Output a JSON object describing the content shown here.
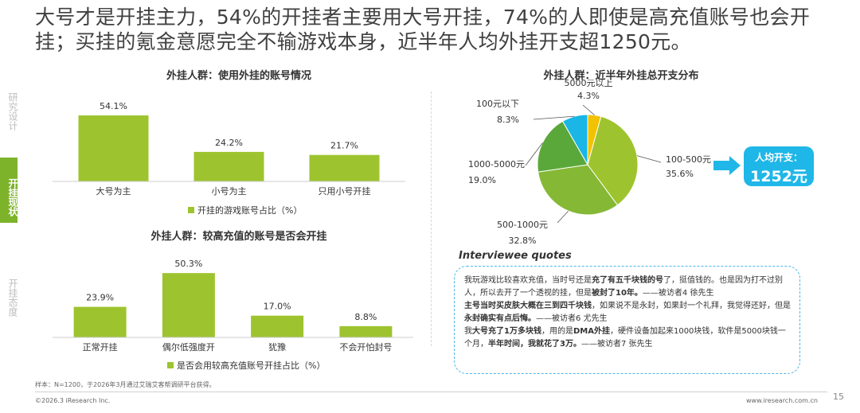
{
  "headline": "大号才是开挂主力，54%的开挂者主要用大号开挂，74%的人即使是高充值账号也会开挂；买挂的氪金意愿完全不输游戏本身，近半年人均外挂开支超1250元。",
  "nav": [
    {
      "label": "研究设计",
      "active": false
    },
    {
      "label": "开挂现状",
      "active": true
    },
    {
      "label": "开挂态度",
      "active": false
    }
  ],
  "colors": {
    "green": "#9dc42e",
    "accent": "#1fb7e8",
    "nav_active": "#7db32b"
  },
  "chart_data": [
    {
      "type": "bar",
      "title": "外挂人群：使用外挂的账号情况",
      "categories": [
        "大号为主",
        "小号为主",
        "只用小号开挂"
      ],
      "values": [
        54.1,
        24.2,
        21.7
      ],
      "labels": [
        "54.1%",
        "24.2%",
        "21.7%"
      ],
      "legend": "开挂的游戏账号占比（%）",
      "ylim": [
        0,
        60
      ]
    },
    {
      "type": "bar",
      "title": "外挂人群：较高充值的账号是否会开挂",
      "categories": [
        "正常开挂",
        "偶尔低强度开",
        "犹豫",
        "不会开怕封号"
      ],
      "values": [
        23.9,
        50.3,
        17.0,
        8.8
      ],
      "labels": [
        "23.9%",
        "50.3%",
        "17.0%",
        "8.8%"
      ],
      "legend": "是否会用较高充值账号开挂占比（%）",
      "ylim": [
        0,
        56
      ]
    },
    {
      "type": "pie",
      "title": "外挂人群：近半年外挂总开支分布",
      "slices": [
        {
          "name": "5000元以上",
          "value": 4.3,
          "label": "4.3%",
          "color": "#f2c200"
        },
        {
          "name": "100-500元",
          "value": 35.6,
          "label": "35.6%",
          "color": "#9dc42e"
        },
        {
          "name": "500-1000元",
          "value": 32.8,
          "label": "32.8%",
          "color": "#85b835"
        },
        {
          "name": "1000-5000元",
          "value": 19.0,
          "label": "19.0%",
          "color": "#5aa83a"
        },
        {
          "name": "100元以下",
          "value": 8.3,
          "label": "8.3%",
          "color": "#19b6e6"
        }
      ]
    }
  ],
  "badge": {
    "label": "人均开支：",
    "value": "1252元"
  },
  "quotes": {
    "title": "Interviewee quotes",
    "q1": {
      "a": "我玩游戏比较喜欢充值，当时号还是",
      "b": "充了有五千块钱的号",
      "c": "了，挺值钱的。也是因为打不过别人，所以去开了一个透视的挂，但是",
      "d": "被封了10年。",
      "e": "——被访者4 徐先生"
    },
    "q2": {
      "a": "主号当时买皮肤大概在三到四千块钱",
      "b": "，如果说不是永封，如果封一个礼拜，我觉得还好，但是",
      "c": "永封确实有点后悔。",
      "d": "——被访者6 尤先生"
    },
    "q3": {
      "a": "我",
      "b": "大号充了1万多块钱",
      "c": "，用的是",
      "d": "DMA外挂",
      "e": "，硬件设备加起来1000块钱，软件是5000块钱一个月，",
      "f": "半年时间，我就花了3万。",
      "g": "——被访者7 张先生"
    }
  },
  "footnote": "样本：N=1200，于2026年3月通过艾瑞艾客帮调研平台获得。",
  "copyright": "©2026.3 iResearch Inc.",
  "website": "www.iresearch.com.cn",
  "page_number": "15"
}
